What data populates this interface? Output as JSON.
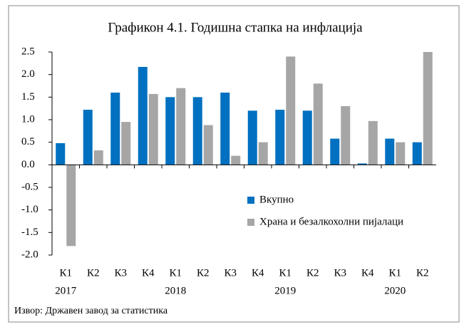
{
  "chart_data": {
    "type": "bar",
    "title": "Графикон 4.1. Годишна стапка на инфлација",
    "categories": [
      "К1",
      "К2",
      "К3",
      "К4",
      "К1",
      "К2",
      "К3",
      "К4",
      "К1",
      "К2",
      "К3",
      "К4",
      "К1",
      "К2"
    ],
    "years": [
      "2017",
      null,
      null,
      null,
      "2018",
      null,
      null,
      null,
      "2019",
      null,
      null,
      null,
      "2020",
      null
    ],
    "series": [
      {
        "name": "Вкупно",
        "color": "#0070c0",
        "values": [
          0.48,
          1.22,
          1.6,
          2.17,
          1.5,
          1.5,
          1.6,
          1.2,
          1.22,
          1.2,
          0.58,
          0.03,
          0.58,
          0.5
        ]
      },
      {
        "name": "Храна и безалкохолни пијалаци",
        "color": "#a6a6a6",
        "values": [
          -1.8,
          0.32,
          0.95,
          1.57,
          1.7,
          0.88,
          0.2,
          0.5,
          2.4,
          1.8,
          1.3,
          0.97,
          0.5,
          2.5
        ]
      }
    ],
    "ylim": [
      -2,
      2.5
    ],
    "yticks": [
      {
        "value": -2,
        "label": "-2.0"
      },
      -1.5,
      {
        "value": -1,
        "label": "-1.0"
      },
      -0.5,
      {
        "value": 0,
        "label": "0.0"
      },
      0.5,
      {
        "value": 1,
        "label": "1.0"
      },
      1.5,
      {
        "value": 2,
        "label": "2.0"
      },
      2.5
    ],
    "source": "Извор: Државен завод за статистика"
  }
}
